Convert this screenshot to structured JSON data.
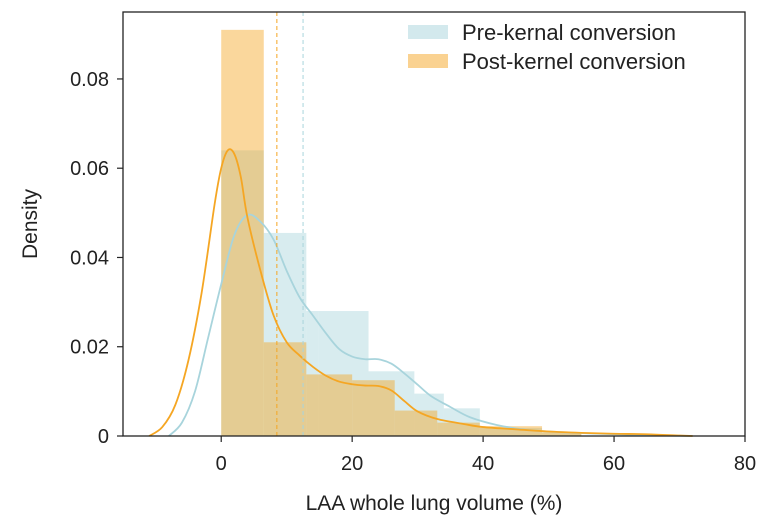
{
  "chart_data": {
    "type": "histogram",
    "title": "",
    "xlabel": "LAA whole lung volume (%)",
    "ylabel": "Density",
    "xlim": [
      -15,
      80
    ],
    "ylim": [
      0,
      0.095
    ],
    "xticks": [
      0,
      20,
      40,
      60,
      80
    ],
    "yticks": [
      0,
      0.02,
      0.04,
      0.06,
      0.08
    ],
    "xtick_labels": [
      "0",
      "20",
      "40",
      "60",
      "80"
    ],
    "ytick_labels": [
      "0",
      "0.02",
      "0.04",
      "0.06",
      "0.08"
    ],
    "legend_position": "top-right",
    "series": [
      {
        "name": "Pre-kernal conversion",
        "color": "#a8d4dc",
        "fill_opacity": 0.45,
        "bins": [
          {
            "x0": 0,
            "x1": 6.5,
            "value": 0.064
          },
          {
            "x0": 6.5,
            "x1": 13,
            "value": 0.0455
          },
          {
            "x0": 13,
            "x1": 14.8,
            "value": 0.028
          },
          {
            "x0": 14.8,
            "x1": 22.5,
            "value": 0.028
          },
          {
            "x0": 22.5,
            "x1": 29.5,
            "value": 0.0145
          },
          {
            "x0": 29.5,
            "x1": 34,
            "value": 0.0095
          },
          {
            "x0": 34,
            "x1": 39.5,
            "value": 0.0062
          },
          {
            "x0": 39.5,
            "x1": 49,
            "value": 0.0018
          },
          {
            "x0": 49,
            "x1": 55,
            "value": 0.0008
          }
        ],
        "kde": [
          [
            -8,
            0
          ],
          [
            -6,
            0.003
          ],
          [
            -4,
            0.01
          ],
          [
            -2,
            0.022
          ],
          [
            0,
            0.034
          ],
          [
            2,
            0.045
          ],
          [
            4,
            0.0495
          ],
          [
            6,
            0.048
          ],
          [
            8,
            0.044
          ],
          [
            10,
            0.037
          ],
          [
            12,
            0.031
          ],
          [
            14,
            0.027
          ],
          [
            16,
            0.023
          ],
          [
            18,
            0.0195
          ],
          [
            20,
            0.0178
          ],
          [
            22,
            0.0172
          ],
          [
            24,
            0.0172
          ],
          [
            26,
            0.0162
          ],
          [
            28,
            0.014
          ],
          [
            30,
            0.0115
          ],
          [
            32,
            0.009
          ],
          [
            35,
            0.0065
          ],
          [
            38,
            0.0042
          ],
          [
            42,
            0.0025
          ],
          [
            46,
            0.0015
          ],
          [
            50,
            0.001
          ],
          [
            56,
            0.0006
          ],
          [
            62,
            0.0003
          ],
          [
            68,
            0.0001
          ],
          [
            72,
            0
          ]
        ],
        "mean": 12.5
      },
      {
        "name": "Post-kernel conversion",
        "color": "#f5a623",
        "fill_opacity": 0.45,
        "bins": [
          {
            "x0": 0,
            "x1": 6.5,
            "value": 0.091
          },
          {
            "x0": 6.5,
            "x1": 13,
            "value": 0.021
          },
          {
            "x0": 13,
            "x1": 20,
            "value": 0.0138
          },
          {
            "x0": 20,
            "x1": 26.5,
            "value": 0.0125
          },
          {
            "x0": 26.5,
            "x1": 33,
            "value": 0.0057
          },
          {
            "x0": 33,
            "x1": 39.5,
            "value": 0.003
          },
          {
            "x0": 39.5,
            "x1": 49,
            "value": 0.0022
          },
          {
            "x0": 49,
            "x1": 55,
            "value": 0.0008
          }
        ],
        "kde": [
          [
            -11,
            0
          ],
          [
            -9,
            0.002
          ],
          [
            -7,
            0.007
          ],
          [
            -5,
            0.017
          ],
          [
            -3,
            0.032
          ],
          [
            -1,
            0.052
          ],
          [
            0,
            0.06
          ],
          [
            1,
            0.064
          ],
          [
            2,
            0.0632
          ],
          [
            3,
            0.058
          ],
          [
            4,
            0.049
          ],
          [
            6,
            0.037
          ],
          [
            8,
            0.027
          ],
          [
            10,
            0.021
          ],
          [
            12,
            0.018
          ],
          [
            14,
            0.0155
          ],
          [
            16,
            0.0135
          ],
          [
            18,
            0.0122
          ],
          [
            20,
            0.0116
          ],
          [
            22,
            0.0113
          ],
          [
            24,
            0.0112
          ],
          [
            26,
            0.0102
          ],
          [
            28,
            0.0078
          ],
          [
            30,
            0.0055
          ],
          [
            33,
            0.0038
          ],
          [
            37,
            0.0027
          ],
          [
            40,
            0.002
          ],
          [
            45,
            0.0015
          ],
          [
            50,
            0.001
          ],
          [
            55,
            0.0007
          ],
          [
            60,
            0.0005
          ],
          [
            65,
            0.0004
          ],
          [
            70,
            0.0001
          ],
          [
            72,
            0
          ]
        ],
        "mean": 8.5
      }
    ]
  }
}
